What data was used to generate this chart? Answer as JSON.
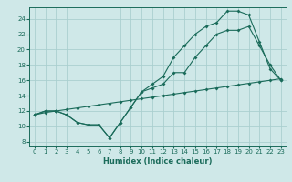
{
  "xlabel": "Humidex (Indice chaleur)",
  "ylabel": "",
  "background_color": "#cfe8e8",
  "grid_color": "#aacfcf",
  "line_color": "#1a6b5a",
  "xlim": [
    -0.5,
    23.5
  ],
  "ylim": [
    7.5,
    25.5
  ],
  "xticks": [
    0,
    1,
    2,
    3,
    4,
    5,
    6,
    7,
    8,
    9,
    10,
    11,
    12,
    13,
    14,
    15,
    16,
    17,
    18,
    19,
    20,
    21,
    22,
    23
  ],
  "yticks": [
    8,
    10,
    12,
    14,
    16,
    18,
    20,
    22,
    24
  ],
  "line1_x": [
    0,
    1,
    2,
    3,
    4,
    5,
    6,
    7,
    8,
    9,
    10,
    11,
    12,
    13,
    14,
    15,
    16,
    17,
    18,
    19,
    20,
    21,
    22,
    23
  ],
  "line1_y": [
    11.5,
    11.8,
    12.0,
    12.2,
    12.4,
    12.6,
    12.8,
    13.0,
    13.2,
    13.4,
    13.6,
    13.8,
    14.0,
    14.2,
    14.4,
    14.6,
    14.8,
    15.0,
    15.2,
    15.4,
    15.6,
    15.8,
    16.0,
    16.2
  ],
  "line2_x": [
    0,
    1,
    2,
    3,
    4,
    5,
    6,
    7,
    8,
    9,
    10,
    11,
    12,
    13,
    14,
    15,
    16,
    17,
    18,
    19,
    20,
    21,
    22,
    23
  ],
  "line2_y": [
    11.5,
    12.0,
    12.0,
    11.5,
    10.5,
    10.2,
    10.2,
    8.5,
    10.5,
    12.5,
    14.5,
    15.0,
    15.5,
    17.0,
    17.0,
    19.0,
    20.5,
    22.0,
    22.5,
    22.5,
    23.0,
    20.5,
    18.0,
    16.0
  ],
  "line3_x": [
    0,
    1,
    2,
    3,
    4,
    5,
    6,
    7,
    8,
    9,
    10,
    11,
    12,
    13,
    14,
    15,
    16,
    17,
    18,
    19,
    20,
    21,
    22,
    23
  ],
  "line3_y": [
    11.5,
    12.0,
    12.0,
    11.5,
    10.5,
    10.2,
    10.2,
    8.5,
    10.5,
    12.5,
    14.5,
    15.5,
    16.5,
    19.0,
    20.5,
    22.0,
    23.0,
    23.5,
    25.0,
    25.0,
    24.5,
    21.0,
    17.5,
    16.0
  ]
}
